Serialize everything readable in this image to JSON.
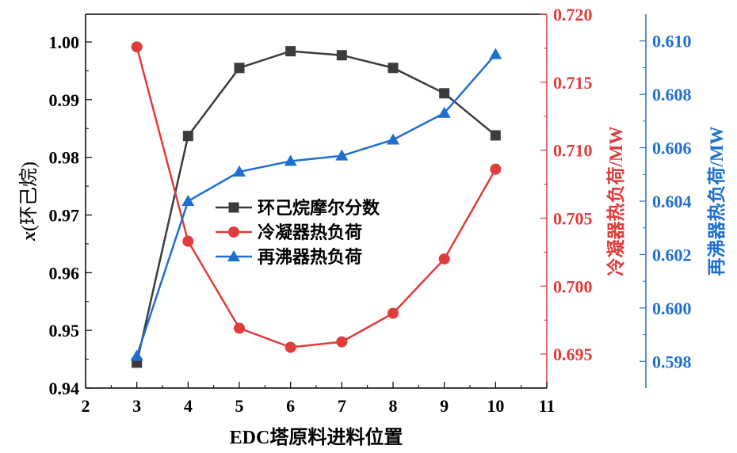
{
  "chart_data": {
    "type": "line",
    "x": [
      3,
      4,
      5,
      6,
      7,
      8,
      9,
      10
    ],
    "xlabel": "EDC塔原料进料位置",
    "xlim": [
      2,
      11
    ],
    "xticks": [
      "2",
      "3",
      "4",
      "5",
      "6",
      "7",
      "8",
      "9",
      "10",
      "11"
    ],
    "axes": [
      {
        "id": "left",
        "label_prefix": "x",
        "label_suffix": "(环己烷)",
        "ylim": [
          0.94,
          1.0048
        ],
        "ticks": [
          "0.94",
          "0.95",
          "0.96",
          "0.97",
          "0.98",
          "0.99",
          "1.00"
        ],
        "color": "#000000"
      },
      {
        "id": "right1",
        "label": "冷凝器热负荷/MW",
        "ylim": [
          0.6925,
          0.72
        ],
        "ticks": [
          "0.695",
          "0.700",
          "0.705",
          "0.710",
          "0.715",
          "0.720"
        ],
        "color": "#e03c3c"
      },
      {
        "id": "right2",
        "label": "再沸器热负荷/MW",
        "ylim": [
          0.597,
          0.611
        ],
        "ticks": [
          "0.598",
          "0.600",
          "0.602",
          "0.604",
          "0.606",
          "0.608",
          "0.610"
        ],
        "color": "#1f6fd0"
      }
    ],
    "series": [
      {
        "name": "环己烷摩尔分数",
        "axis": "left",
        "marker": "square",
        "color": "#3c3c3c",
        "values": [
          0.9444,
          0.9837,
          0.9955,
          0.9984,
          0.9977,
          0.9955,
          0.9911,
          0.9838
        ]
      },
      {
        "name": "冷凝器热负荷",
        "axis": "right1",
        "marker": "circle",
        "color": "#e03c3c",
        "values": [
          0.7176,
          0.7033,
          0.6969,
          0.6955,
          0.6959,
          0.698,
          0.702,
          0.7086
        ]
      },
      {
        "name": "再沸器热负荷",
        "axis": "right2",
        "marker": "triangle",
        "color": "#1f6fd0",
        "values": [
          0.5982,
          0.604,
          0.6051,
          0.6055,
          0.6057,
          0.6063,
          0.6073,
          0.6095
        ]
      }
    ],
    "legend": "center-left",
    "grid": false
  }
}
